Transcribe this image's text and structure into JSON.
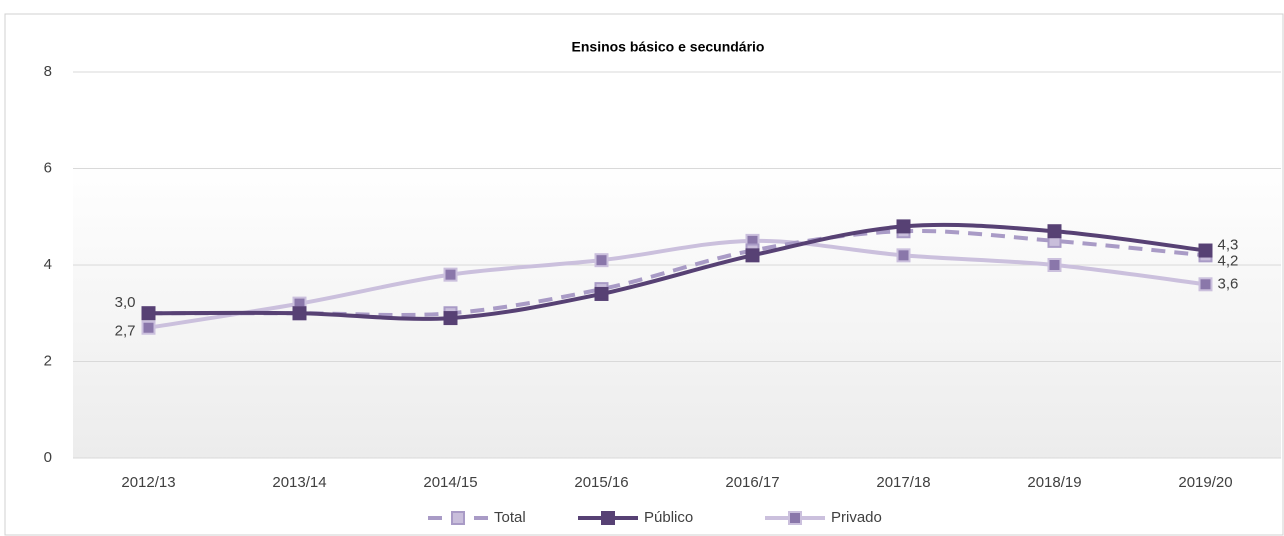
{
  "chart_data": {
    "type": "line",
    "title": "Ensinos básico e secundário",
    "categories": [
      "2012/13",
      "2013/14",
      "2014/15",
      "2015/16",
      "2016/17",
      "2017/18",
      "2018/19",
      "2019/20"
    ],
    "series": [
      {
        "name": "Total",
        "color": "#a99bc6",
        "line_style": "dashed",
        "marker_color": "#c9bedb",
        "values": [
          3.0,
          3.0,
          3.0,
          3.5,
          4.3,
          4.7,
          4.5,
          4.2
        ],
        "value_labels": [
          null,
          null,
          null,
          null,
          null,
          null,
          null,
          "4,2"
        ]
      },
      {
        "name": "Público",
        "color": "#574174",
        "line_style": "solid",
        "marker_color": "#574174",
        "values": [
          3.0,
          3.0,
          2.9,
          3.4,
          4.2,
          4.8,
          4.7,
          4.3
        ],
        "value_labels": [
          "3,0",
          null,
          null,
          null,
          null,
          null,
          null,
          "4,3"
        ]
      },
      {
        "name": "Privado",
        "color": "#cbc0dd",
        "line_style": "solid",
        "marker_color": "#8a77aa",
        "values": [
          2.7,
          3.2,
          3.8,
          4.1,
          4.5,
          4.2,
          4.0,
          3.6
        ],
        "value_labels": [
          "2,7",
          null,
          null,
          null,
          null,
          null,
          null,
          "3,6"
        ]
      }
    ],
    "ylim": [
      0,
      8
    ],
    "yticks": [
      0,
      2,
      4,
      6,
      8
    ],
    "grid": true,
    "legend": "bottom",
    "smooth": true
  }
}
